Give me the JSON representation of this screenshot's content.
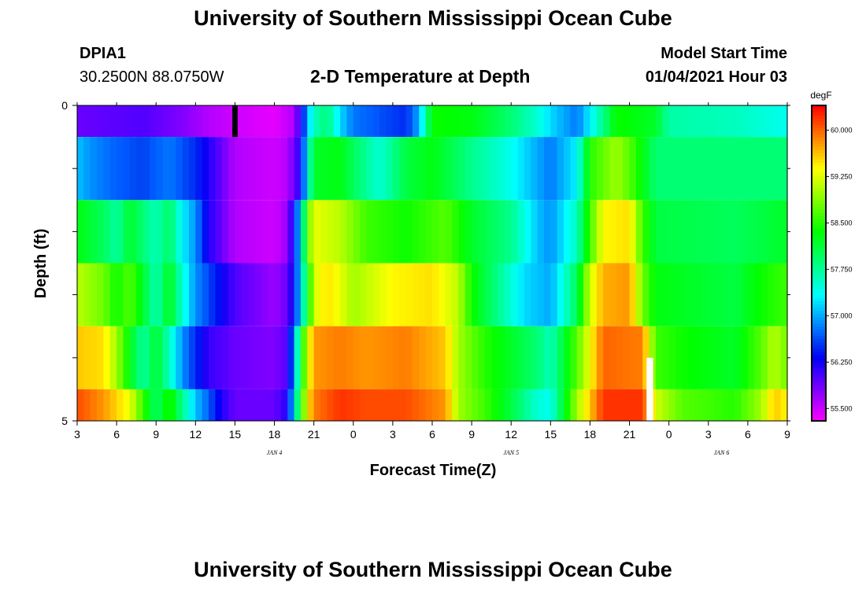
{
  "page": {
    "title_top": "University of Southern Mississippi Ocean Cube",
    "title_bottom": "University of Southern Mississippi Ocean Cube",
    "station_id": "DPIA1",
    "station_coords": "30.2500N 88.0750W",
    "plot_title": "2-D Temperature at Depth",
    "model_start_label": "Model Start Time",
    "model_start_value": "01/04/2021 Hour 03"
  },
  "chart_data": {
    "type": "heatmap",
    "title": "2-D Temperature at Depth",
    "xlabel": "Forecast Time(Z)",
    "ylabel": "Depth (ft)",
    "x_tick_labels": [
      "3",
      "6",
      "9",
      "12",
      "15",
      "18",
      "21",
      "0",
      "3",
      "6",
      "9",
      "12",
      "15",
      "18",
      "21",
      "0",
      "3",
      "6",
      "9"
    ],
    "date_labels": [
      {
        "label": "JAN 4",
        "hour_index": 15
      },
      {
        "label": "JAN 5",
        "hour_index": 33
      },
      {
        "label": "JAN 6",
        "hour_index": 49
      }
    ],
    "x_range_hours": [
      0,
      54
    ],
    "y_range": [
      0,
      5
    ],
    "y_tick_labels": [
      "0",
      "5"
    ],
    "colorbar": {
      "unit": "degF",
      "range": [
        55.3,
        60.4
      ],
      "tick_values": [
        55.5,
        56.25,
        57.0,
        57.75,
        58.5,
        59.25,
        60.0
      ],
      "tick_labels": [
        "55.500",
        "56.250",
        "57.000",
        "57.750",
        "58.500",
        "59.250",
        "60.000"
      ]
    },
    "layers": [
      {
        "depth_top": 0,
        "depth_bottom": 0.5,
        "knots": [
          [
            0,
            55.9
          ],
          [
            5,
            56.0
          ],
          [
            8,
            55.8
          ],
          [
            10,
            55.6
          ],
          [
            12,
            55.5
          ],
          [
            15,
            55.4
          ],
          [
            16.5,
            55.6
          ],
          [
            17,
            56.2
          ],
          [
            17.5,
            57.0
          ],
          [
            18,
            57.6
          ],
          [
            19,
            57.9
          ],
          [
            20,
            57.2
          ],
          [
            21,
            56.8
          ],
          [
            25,
            56.5
          ],
          [
            26,
            57.0
          ],
          [
            27,
            58.4
          ],
          [
            30,
            58.3
          ],
          [
            33,
            57.9
          ],
          [
            35,
            57.5
          ],
          [
            36,
            57.2
          ],
          [
            38,
            56.8
          ],
          [
            39,
            57.3
          ],
          [
            40,
            57.8
          ],
          [
            41,
            58.4
          ],
          [
            44,
            58.2
          ],
          [
            45,
            57.7
          ],
          [
            50,
            57.6
          ],
          [
            54,
            57.4
          ]
        ]
      },
      {
        "depth_top": 0.5,
        "depth_bottom": 1.5,
        "knots": [
          [
            0,
            57.1
          ],
          [
            1,
            56.9
          ],
          [
            3,
            56.7
          ],
          [
            5,
            56.6
          ],
          [
            7,
            56.8
          ],
          [
            9,
            56.5
          ],
          [
            10,
            56.2
          ],
          [
            12,
            55.6
          ],
          [
            15,
            55.5
          ],
          [
            16,
            55.6
          ],
          [
            17,
            56.2
          ],
          [
            17.5,
            57.4
          ],
          [
            18,
            58.2
          ],
          [
            20,
            58.3
          ],
          [
            21,
            58.0
          ],
          [
            23,
            57.5
          ],
          [
            25,
            58.1
          ],
          [
            27,
            58.3
          ],
          [
            30,
            57.8
          ],
          [
            33,
            57.4
          ],
          [
            35,
            57.0
          ],
          [
            36,
            56.8
          ],
          [
            38,
            57.3
          ],
          [
            39,
            58.5
          ],
          [
            41,
            59.0
          ],
          [
            42,
            58.7
          ],
          [
            43,
            58.3
          ],
          [
            44,
            57.9
          ],
          [
            50,
            57.9
          ],
          [
            54,
            57.9
          ]
        ]
      },
      {
        "depth_top": 1.5,
        "depth_bottom": 2.5,
        "knots": [
          [
            0,
            58.3
          ],
          [
            2,
            58.0
          ],
          [
            3,
            57.7
          ],
          [
            4,
            58.2
          ],
          [
            5,
            57.9
          ],
          [
            6,
            57.6
          ],
          [
            7,
            58.0
          ],
          [
            8,
            57.3
          ],
          [
            9,
            56.9
          ],
          [
            10,
            56.2
          ],
          [
            12,
            55.6
          ],
          [
            15,
            55.5
          ],
          [
            16,
            55.7
          ],
          [
            16.5,
            56.4
          ],
          [
            17,
            57.2
          ],
          [
            17.5,
            58.7
          ],
          [
            18,
            59.3
          ],
          [
            20,
            59.1
          ],
          [
            22,
            58.6
          ],
          [
            25,
            58.4
          ],
          [
            28,
            58.7
          ],
          [
            30,
            58.2
          ],
          [
            33,
            57.8
          ],
          [
            35,
            57.1
          ],
          [
            36,
            56.9
          ],
          [
            38,
            57.6
          ],
          [
            39,
            58.6
          ],
          [
            40,
            59.4
          ],
          [
            42,
            59.5
          ],
          [
            43,
            58.6
          ],
          [
            44,
            58.1
          ],
          [
            50,
            58.0
          ],
          [
            54,
            58.2
          ]
        ]
      },
      {
        "depth_top": 2.5,
        "depth_bottom": 3.5,
        "knots": [
          [
            0,
            59.1
          ],
          [
            2,
            58.8
          ],
          [
            3,
            58.4
          ],
          [
            4,
            58.7
          ],
          [
            5,
            58.2
          ],
          [
            6,
            57.6
          ],
          [
            7,
            58.3
          ],
          [
            8,
            57.5
          ],
          [
            9,
            56.9
          ],
          [
            10,
            56.6
          ],
          [
            12,
            56.0
          ],
          [
            15,
            55.7
          ],
          [
            16,
            55.9
          ],
          [
            16.5,
            56.4
          ],
          [
            17,
            57.2
          ],
          [
            17.5,
            58.2
          ],
          [
            18,
            59.2
          ],
          [
            19,
            59.5
          ],
          [
            20,
            59.3
          ],
          [
            21,
            59.0
          ],
          [
            24,
            59.4
          ],
          [
            27,
            59.5
          ],
          [
            29,
            59.1
          ],
          [
            30,
            58.4
          ],
          [
            32,
            57.8
          ],
          [
            34,
            57.2
          ],
          [
            36,
            57.0
          ],
          [
            38,
            58.0
          ],
          [
            39,
            59.2
          ],
          [
            40,
            59.7
          ],
          [
            42,
            59.8
          ],
          [
            43,
            58.8
          ],
          [
            44,
            58.3
          ],
          [
            50,
            58.1
          ],
          [
            52,
            58.4
          ],
          [
            54,
            58.6
          ]
        ]
      },
      {
        "depth_top": 3.5,
        "depth_bottom": 4.5,
        "knots": [
          [
            0,
            59.6
          ],
          [
            2,
            59.5
          ],
          [
            3,
            59.0
          ],
          [
            4,
            58.3
          ],
          [
            5,
            57.7
          ],
          [
            6,
            58.2
          ],
          [
            7,
            57.6
          ],
          [
            8,
            56.9
          ],
          [
            9,
            56.5
          ],
          [
            10,
            56.1
          ],
          [
            12,
            55.9
          ],
          [
            15,
            55.8
          ],
          [
            16,
            56.0
          ],
          [
            16.5,
            57.0
          ],
          [
            17,
            58.2
          ],
          [
            17.5,
            59.2
          ],
          [
            18,
            59.8
          ],
          [
            20,
            59.9
          ],
          [
            22,
            59.8
          ],
          [
            25,
            59.9
          ],
          [
            28,
            59.6
          ],
          [
            29,
            59.0
          ],
          [
            31,
            58.5
          ],
          [
            33,
            58.2
          ],
          [
            35,
            57.9
          ],
          [
            36,
            57.6
          ],
          [
            38,
            58.7
          ],
          [
            40,
            60.0
          ],
          [
            43,
            59.9
          ],
          [
            44,
            58.6
          ],
          [
            46,
            58.4
          ],
          [
            50,
            58.2
          ],
          [
            52,
            58.7
          ],
          [
            53,
            59.1
          ],
          [
            54,
            58.8
          ]
        ]
      },
      {
        "depth_top": 4.5,
        "depth_bottom": 5.0,
        "knots": [
          [
            0,
            60.1
          ],
          [
            2,
            59.8
          ],
          [
            4,
            59.3
          ],
          [
            5,
            58.6
          ],
          [
            6,
            57.9
          ],
          [
            7,
            58.5
          ],
          [
            8,
            57.8
          ],
          [
            9,
            57.1
          ],
          [
            10,
            56.7
          ],
          [
            11,
            56.2
          ],
          [
            12,
            55.9
          ],
          [
            15,
            55.9
          ],
          [
            16,
            56.2
          ],
          [
            16.5,
            57.3
          ],
          [
            17,
            58.4
          ],
          [
            17.5,
            59.4
          ],
          [
            18,
            59.9
          ],
          [
            20,
            60.2
          ],
          [
            22,
            60.1
          ],
          [
            25,
            60.1
          ],
          [
            28,
            59.8
          ],
          [
            29,
            59.0
          ],
          [
            31,
            58.6
          ],
          [
            33,
            58.1
          ],
          [
            35,
            57.5
          ],
          [
            36,
            57.4
          ],
          [
            38,
            59.0
          ],
          [
            40,
            60.2
          ],
          [
            43,
            60.2
          ],
          [
            44,
            59.2
          ],
          [
            46,
            58.7
          ],
          [
            50,
            58.5
          ],
          [
            52,
            59.0
          ],
          [
            53,
            59.6
          ],
          [
            54,
            59.4
          ]
        ]
      }
    ],
    "markers": [
      {
        "color": "#000000",
        "hour_start": 11.8,
        "hour_end": 12.2,
        "depth_top": 0,
        "depth_bottom": 0.5
      },
      {
        "color": "#ffffff",
        "hour_start": 43.3,
        "hour_end": 43.8,
        "depth_top": 4.0,
        "depth_bottom": 5.0
      }
    ]
  }
}
